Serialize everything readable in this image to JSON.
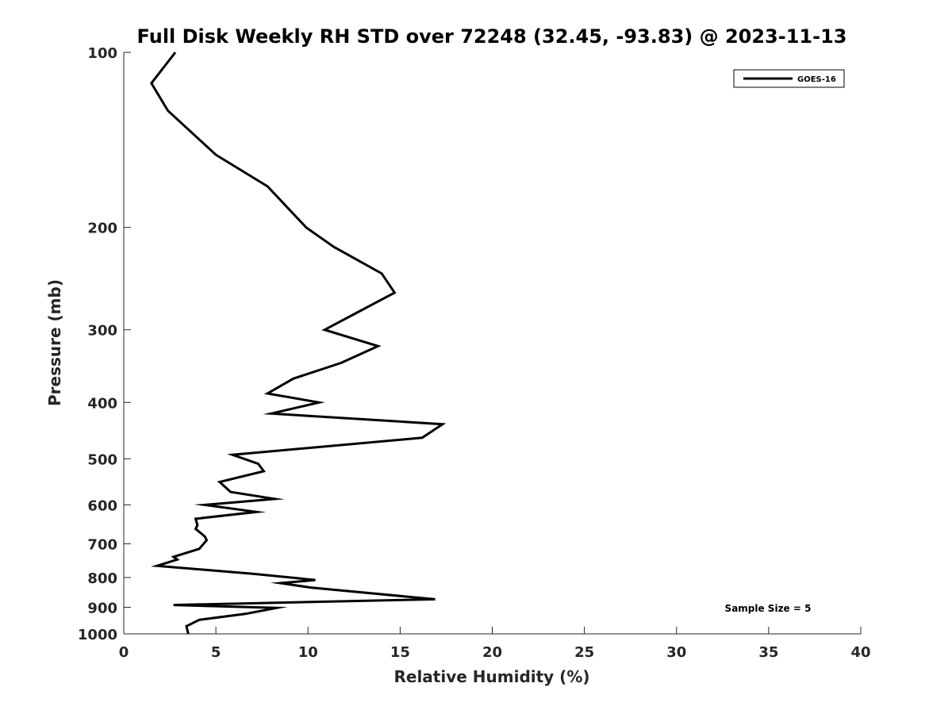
{
  "chart_data": {
    "type": "line",
    "title": "Full Disk Weekly RH STD over 72248 (32.45, -93.83) @ 2023-11-13",
    "xlabel": "Relative Humidity (%)",
    "ylabel": "Pressure (mb)",
    "xlim": [
      0,
      40
    ],
    "ylim": [
      100,
      1000
    ],
    "yscale": "log",
    "y_reversed": true,
    "xticks": [
      0,
      5,
      10,
      15,
      20,
      25,
      30,
      35,
      40
    ],
    "yticks": [
      100,
      200,
      300,
      400,
      500,
      600,
      700,
      800,
      900,
      1000
    ],
    "grid": false,
    "legend_position": "top-right",
    "line_color": "#000000",
    "annotation": "Sample Size = 5",
    "series": [
      {
        "name": "GOES-16",
        "x": [
          2.8,
          1.5,
          2.4,
          5.0,
          7.8,
          9.9,
          11.4,
          14.0,
          14.7,
          12.5,
          10.9,
          13.8,
          11.8,
          9.2,
          7.8,
          10.6,
          8.0,
          17.3,
          16.2,
          5.9,
          7.3,
          7.6,
          5.2,
          5.8,
          8.2,
          4.4,
          7.2,
          3.9,
          4.0,
          3.9,
          4.4,
          4.5,
          4.1,
          2.7,
          2.9,
          1.8,
          7.0,
          10.4,
          8.5,
          10.2,
          16.9,
          2.7,
          8.3,
          6.6,
          4.1,
          3.4,
          3.5
        ],
        "y": [
          100,
          113,
          126,
          150,
          170,
          200,
          216,
          240,
          259,
          282,
          300,
          320,
          342,
          364,
          386,
          400,
          418,
          436,
          460,
          492,
          510,
          525,
          548,
          570,
          586,
          600,
          617,
          634,
          650,
          660,
          680,
          690,
          714,
          737,
          745,
          764,
          788,
          808,
          818,
          833,
          872,
          892,
          902,
          924,
          946,
          970,
          1000
        ]
      }
    ]
  }
}
